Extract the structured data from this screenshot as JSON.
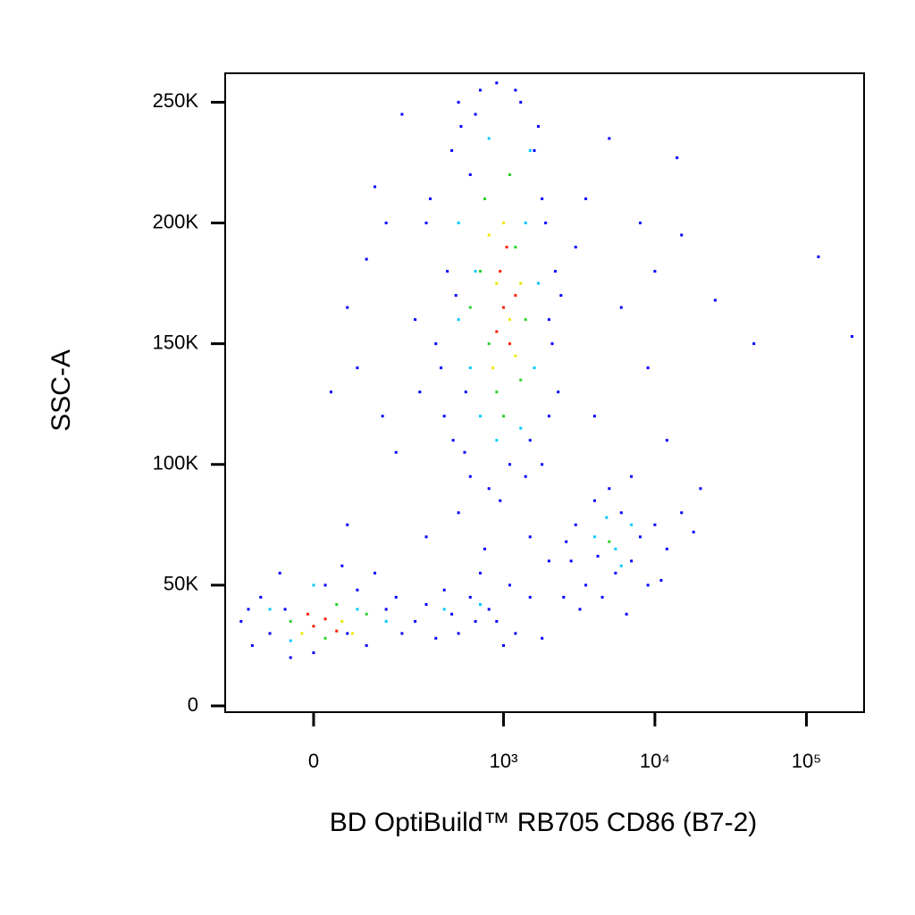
{
  "chart_data": {
    "type": "scatter",
    "xlabel": "BD OptiBuild™ RB705 CD86 (B7-2)",
    "ylabel": "SSC-A",
    "xscale": "biexponential",
    "xlim": [
      -200,
      240000
    ],
    "ylim": [
      -2600,
      262000
    ],
    "xticks": [
      0,
      {
        "value": 1000,
        "label": "10³"
      },
      {
        "value": 10000,
        "label": "10⁴"
      },
      {
        "value": 100000,
        "label": "10⁵"
      }
    ],
    "yticks": [
      0,
      {
        "value": 50000,
        "label": "50K"
      },
      {
        "value": 100000,
        "label": "100K"
      },
      {
        "value": 150000,
        "label": "150K"
      },
      {
        "value": 200000,
        "label": "200K"
      },
      {
        "value": 250000,
        "label": "250K"
      }
    ],
    "series": [
      {
        "color": "#0000ff",
        "x": [
          300,
          350,
          400,
          420,
          450,
          500,
          550,
          600,
          700,
          800,
          900,
          1100,
          1300,
          1500,
          1700,
          1900,
          2100,
          2300,
          2000,
          1800,
          250,
          320,
          380,
          460,
          520,
          650,
          1200,
          1600,
          2200,
          2400,
          1400,
          950,
          480,
          560,
          600,
          1800,
          2000,
          270,
          200,
          150,
          100,
          60,
          120,
          80,
          180,
          140,
          30,
          5000,
          8000,
          10000,
          14000,
          15000,
          25000,
          45000,
          120000,
          200000,
          6000,
          9000,
          4000,
          12000,
          3000,
          3500,
          -150,
          -120,
          -100,
          -80,
          -60,
          -40,
          0,
          20,
          50,
          80,
          100,
          150,
          200,
          -50,
          120,
          180,
          -130,
          60,
          250,
          300,
          350,
          400,
          450,
          500,
          600,
          700,
          800,
          900,
          1000,
          1200,
          1500,
          1800,
          2000,
          650,
          750,
          1100,
          300,
          500,
          1500,
          60,
          2500,
          2800,
          3000,
          3500,
          4000,
          4500,
          5000,
          5500,
          6000,
          7000,
          8000,
          9000,
          10000,
          12000,
          15000,
          18000,
          20000,
          3200,
          7000,
          11000,
          4200,
          6500,
          2600
        ],
        "y": [
          200000,
          150000,
          120000,
          180000,
          230000,
          250000,
          105000,
          95000,
          255000,
          90000,
          258000,
          100000,
          250000,
          110000,
          240000,
          200000,
          150000,
          130000,
          120000,
          100000,
          160000,
          210000,
          140000,
          110000,
          240000,
          245000,
          255000,
          230000,
          180000,
          170000,
          95000,
          85000,
          170000,
          130000,
          220000,
          210000,
          160000,
          130000,
          245000,
          200000,
          185000,
          165000,
          215000,
          140000,
          105000,
          120000,
          130000,
          235000,
          200000,
          180000,
          227000,
          195000,
          168000,
          150000,
          186000,
          153000,
          165000,
          140000,
          120000,
          110000,
          190000,
          210000,
          35000,
          25000,
          45000,
          30000,
          55000,
          20000,
          22000,
          50000,
          58000,
          48000,
          25000,
          40000,
          30000,
          40000,
          55000,
          45000,
          40000,
          30000,
          35000,
          42000,
          28000,
          48000,
          38000,
          30000,
          45000,
          55000,
          40000,
          35000,
          25000,
          30000,
          45000,
          28000,
          60000,
          35000,
          65000,
          50000,
          70000,
          80000,
          70000,
          75000,
          45000,
          60000,
          75000,
          50000,
          85000,
          45000,
          90000,
          55000,
          80000,
          60000,
          70000,
          50000,
          75000,
          65000,
          80000,
          72000,
          90000,
          40000,
          95000,
          52000,
          62000,
          38000,
          68000
        ]
      },
      {
        "color": "#00c8ff",
        "x": [
          500,
          600,
          700,
          1400,
          1600,
          500,
          1700,
          800,
          1300,
          900,
          1500,
          650,
          -80,
          80,
          0,
          -40,
          150,
          4000,
          5500,
          7000,
          6000,
          4800,
          400,
          700
        ],
        "y": [
          200000,
          140000,
          120000,
          200000,
          140000,
          160000,
          175000,
          235000,
          115000,
          110000,
          230000,
          180000,
          40000,
          40000,
          50000,
          27000,
          35000,
          70000,
          65000,
          75000,
          58000,
          78000,
          40000,
          42000
        ]
      },
      {
        "color": "#28d228",
        "x": [
          700,
          800,
          1200,
          1400,
          900,
          1100,
          750,
          1300,
          600,
          1000,
          -40,
          40,
          20,
          100,
          5000
        ],
        "y": [
          180000,
          150000,
          190000,
          160000,
          130000,
          220000,
          210000,
          135000,
          165000,
          120000,
          35000,
          42000,
          28000,
          38000,
          68000
        ]
      },
      {
        "color": "#f0e600",
        "x": [
          900,
          1100,
          800,
          1200,
          1000,
          850,
          1300,
          -20,
          50,
          70
        ],
        "y": [
          175000,
          160000,
          195000,
          145000,
          200000,
          140000,
          175000,
          30000,
          35000,
          30000
        ]
      },
      {
        "color": "#ff1e00",
        "x": [
          1000,
          1100,
          950,
          1200,
          900,
          1050,
          0,
          20,
          -10,
          40
        ],
        "y": [
          165000,
          150000,
          180000,
          170000,
          155000,
          190000,
          33000,
          36000,
          38000,
          31000
        ]
      }
    ]
  }
}
